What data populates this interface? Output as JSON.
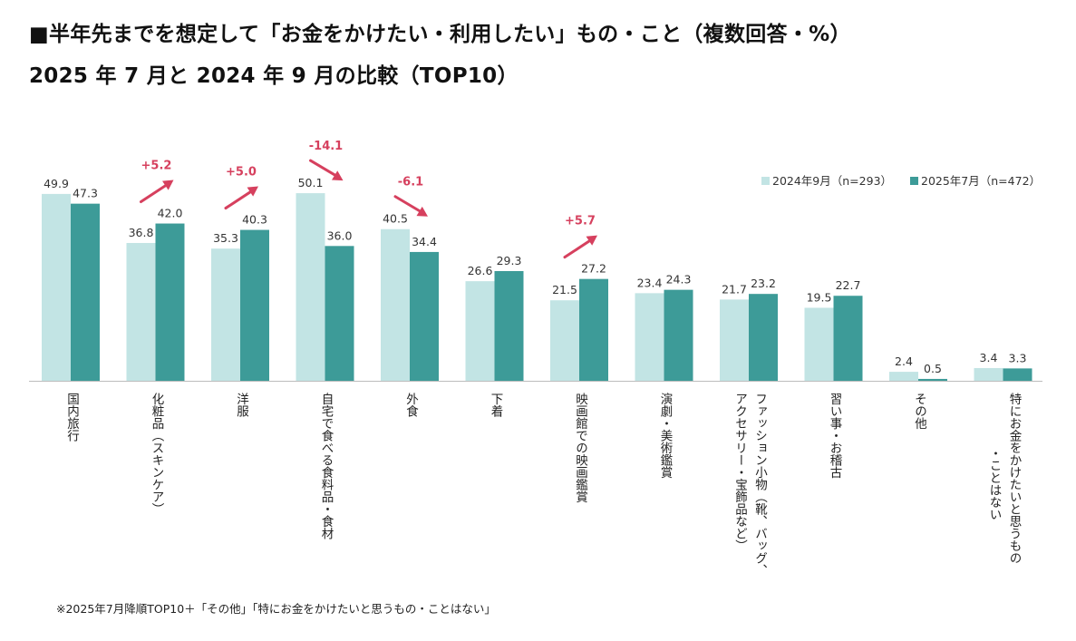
{
  "title_line1": "■半年先までを想定して「お金をかけたい・利用したい」もの・こと（複数回答・%）",
  "title_line2": "2025 年 7 月と 2024 年 9 月の比較（TOP10）",
  "footnote": "※2025年7月降順TOP10＋「その他」「特にお金をかけたいと思うもの・ことはない」",
  "colors": {
    "s2024": "#c2e4e4",
    "s2025": "#3d9b98",
    "arrow": "#d6405e",
    "delta_text": "#d6405e"
  },
  "chart_data": {
    "type": "bar",
    "ylim": [
      0,
      60
    ],
    "grid": false,
    "legend_position": "top-right",
    "categories": [
      "国内旅行",
      "化粧品（スキンケア）",
      "洋服",
      "自宅で食べる食料品・食材",
      "外食",
      "下着",
      "映画館での映画鑑賞",
      "演劇・美術鑑賞",
      "ファッション小物（靴、バッグ、アクセサリー・宝飾品など）",
      "習い事・お稽古",
      "その他",
      "特にお金をかけたいと思うもの・ことはない"
    ],
    "category_lines": [
      [
        "国内旅行"
      ],
      [
        "化粧品（スキンケア）"
      ],
      [
        "洋服"
      ],
      [
        "自宅で食べる食料品・食材"
      ],
      [
        "外食"
      ],
      [
        "下着"
      ],
      [
        "映画館での映画鑑賞"
      ],
      [
        "演劇・美術鑑賞"
      ],
      [
        "ファッション小物（靴、バッグ、",
        "アクセサリー・宝飾品など）"
      ],
      [
        "習い事・お稽古"
      ],
      [
        "その他"
      ],
      [
        "特にお金をかけたいと思うもの",
        "・ことはない"
      ]
    ],
    "series": [
      {
        "name": "2024年9月（n=293）",
        "values": [
          49.9,
          36.8,
          35.3,
          50.1,
          40.5,
          26.6,
          21.5,
          23.4,
          21.7,
          19.5,
          2.4,
          3.4
        ]
      },
      {
        "name": "2025年7月（n=472）",
        "values": [
          47.3,
          42.0,
          40.3,
          36.0,
          34.4,
          29.3,
          27.2,
          24.3,
          23.2,
          22.7,
          0.5,
          3.3
        ]
      }
    ],
    "value_labels": [
      [
        "49.9",
        "36.8",
        "35.3",
        "50.1",
        "40.5",
        "26.6",
        "21.5",
        "23.4",
        "21.7",
        "19.5",
        "2.4",
        "3.4"
      ],
      [
        "47.3",
        "42.0",
        "40.3",
        "36.0",
        "34.4",
        "29.3",
        "27.2",
        "24.3",
        "23.2",
        "22.7",
        "0.5",
        "3.3"
      ]
    ],
    "annotations": [
      {
        "category_index": 1,
        "text": "+5.2",
        "direction": "up"
      },
      {
        "category_index": 2,
        "text": "+5.0",
        "direction": "up"
      },
      {
        "category_index": 3,
        "text": "-14.1",
        "direction": "down"
      },
      {
        "category_index": 4,
        "text": "-6.1",
        "direction": "down"
      },
      {
        "category_index": 6,
        "text": "+5.7",
        "direction": "up"
      }
    ]
  }
}
